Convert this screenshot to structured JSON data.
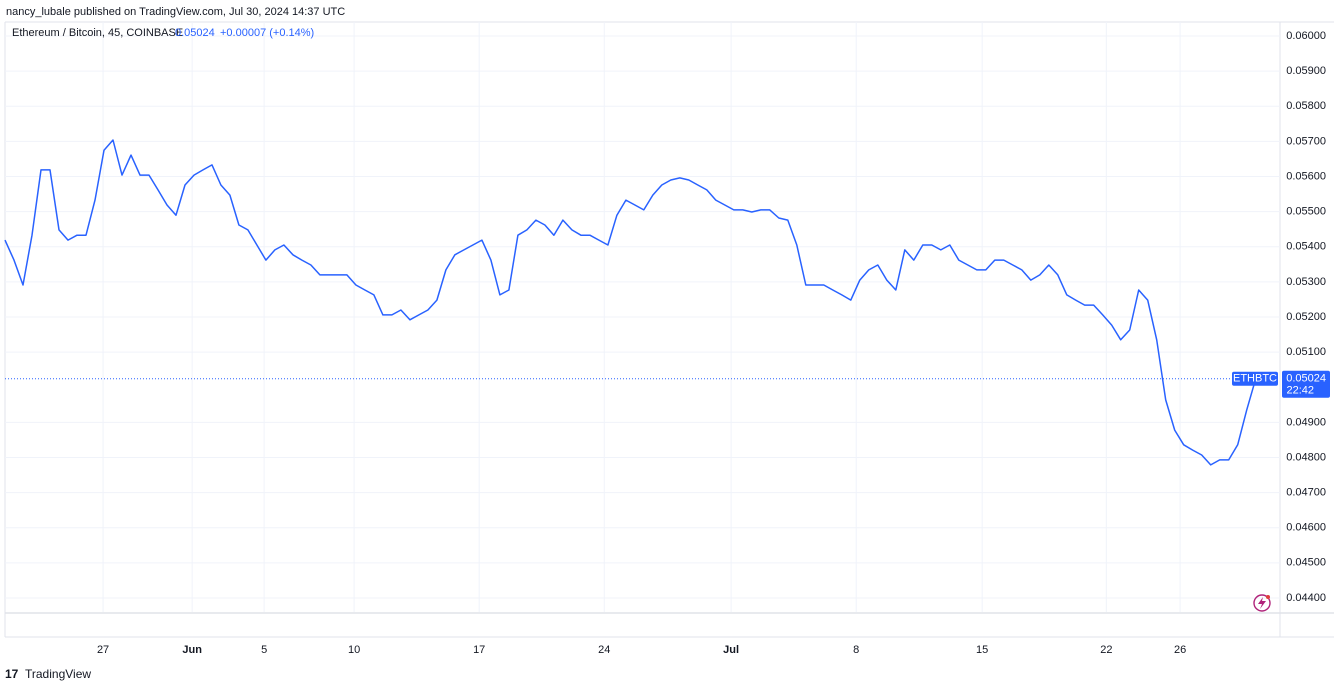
{
  "header": "nancy_lubale published on TradingView.com, Jul 30, 2024 14:37 UTC",
  "footer": "TradingView",
  "chart_data": {
    "type": "line",
    "title": "Ethereum / Bitcoin, 45, COINBASE",
    "last_price": 0.05024,
    "change": "+0.00007 (+0.14%)",
    "symbol": "ETHBTC",
    "countdown": "22:42",
    "color": "#2962ff",
    "grid": true,
    "values": [
      0.05419,
      0.05362,
      0.05291,
      0.05433,
      0.05619,
      0.05619,
      0.05448,
      0.05419,
      0.05433,
      0.05433,
      0.05533,
      0.05675,
      0.05704,
      0.05604,
      0.05661,
      0.05604,
      0.05604,
      0.05562,
      0.05519,
      0.0549,
      0.05576,
      0.05604,
      0.05619,
      0.05633,
      0.05576,
      0.05547,
      0.05462,
      0.05448,
      0.05405,
      0.05362,
      0.05391,
      0.05405,
      0.05377,
      0.05362,
      0.05348,
      0.0532,
      0.0532,
      0.0532,
      0.0532,
      0.05291,
      0.05277,
      0.05263,
      0.05206,
      0.05206,
      0.0522,
      0.05192,
      0.05206,
      0.0522,
      0.05248,
      0.05334,
      0.05377,
      0.05391,
      0.05405,
      0.05419,
      0.05362,
      0.05263,
      0.05277,
      0.05433,
      0.05448,
      0.05476,
      0.05462,
      0.05433,
      0.05476,
      0.05448,
      0.05433,
      0.05433,
      0.05419,
      0.05405,
      0.0549,
      0.05533,
      0.05519,
      0.05505,
      0.05547,
      0.05576,
      0.0559,
      0.05596,
      0.0559,
      0.05576,
      0.05562,
      0.05533,
      0.05519,
      0.05505,
      0.05505,
      0.05499,
      0.05505,
      0.05505,
      0.05482,
      0.05476,
      0.05405,
      0.05291,
      0.05291,
      0.05291,
      0.05277,
      0.05263,
      0.05248,
      0.05305,
      0.05334,
      0.05348,
      0.05305,
      0.05277,
      0.05391,
      0.05362,
      0.05405,
      0.05405,
      0.05391,
      0.05405,
      0.05362,
      0.05348,
      0.05334,
      0.05334,
      0.05362,
      0.05362,
      0.05348,
      0.05334,
      0.05305,
      0.0532,
      0.05348,
      0.0532,
      0.05263,
      0.05248,
      0.05234,
      0.05234,
      0.05206,
      0.05177,
      0.05135,
      0.05163,
      0.05277,
      0.05248,
      0.05135,
      0.04964,
      0.04878,
      0.04836,
      0.04821,
      0.04807,
      0.04779,
      0.04793,
      0.04793,
      0.04836,
      0.04935,
      0.05024
    ],
    "xlim": [
      0,
      141.7
    ],
    "xticks": [
      {
        "value": 10.9,
        "label": "27"
      },
      {
        "value": 20.8,
        "label": "Jun"
      },
      {
        "value": 28.8,
        "label": "5"
      },
      {
        "value": 38.8,
        "label": "10"
      },
      {
        "value": 52.7,
        "label": "17"
      },
      {
        "value": 66.6,
        "label": "24"
      },
      {
        "value": 80.7,
        "label": "Jul"
      },
      {
        "value": 94.6,
        "label": "8"
      },
      {
        "value": 108.6,
        "label": "15"
      },
      {
        "value": 122.4,
        "label": "22"
      },
      {
        "value": 130.6,
        "label": "26"
      }
    ],
    "ylim": [
      0.0436,
      0.0604
    ],
    "yticks": [
      {
        "value": 0.044,
        "label": "0.04400"
      },
      {
        "value": 0.045,
        "label": "0.04500"
      },
      {
        "value": 0.046,
        "label": "0.04600"
      },
      {
        "value": 0.047,
        "label": "0.04700"
      },
      {
        "value": 0.048,
        "label": "0.04800"
      },
      {
        "value": 0.049,
        "label": "0.04900"
      },
      {
        "value": 0.051,
        "label": "0.05100"
      },
      {
        "value": 0.052,
        "label": "0.05200"
      },
      {
        "value": 0.053,
        "label": "0.05300"
      },
      {
        "value": 0.054,
        "label": "0.05400"
      },
      {
        "value": 0.055,
        "label": "0.05500"
      },
      {
        "value": 0.056,
        "label": "0.05600"
      },
      {
        "value": 0.057,
        "label": "0.05700"
      },
      {
        "value": 0.058,
        "label": "0.05800"
      },
      {
        "value": 0.059,
        "label": "0.05900"
      },
      {
        "value": 0.06,
        "label": "0.06000"
      }
    ]
  }
}
